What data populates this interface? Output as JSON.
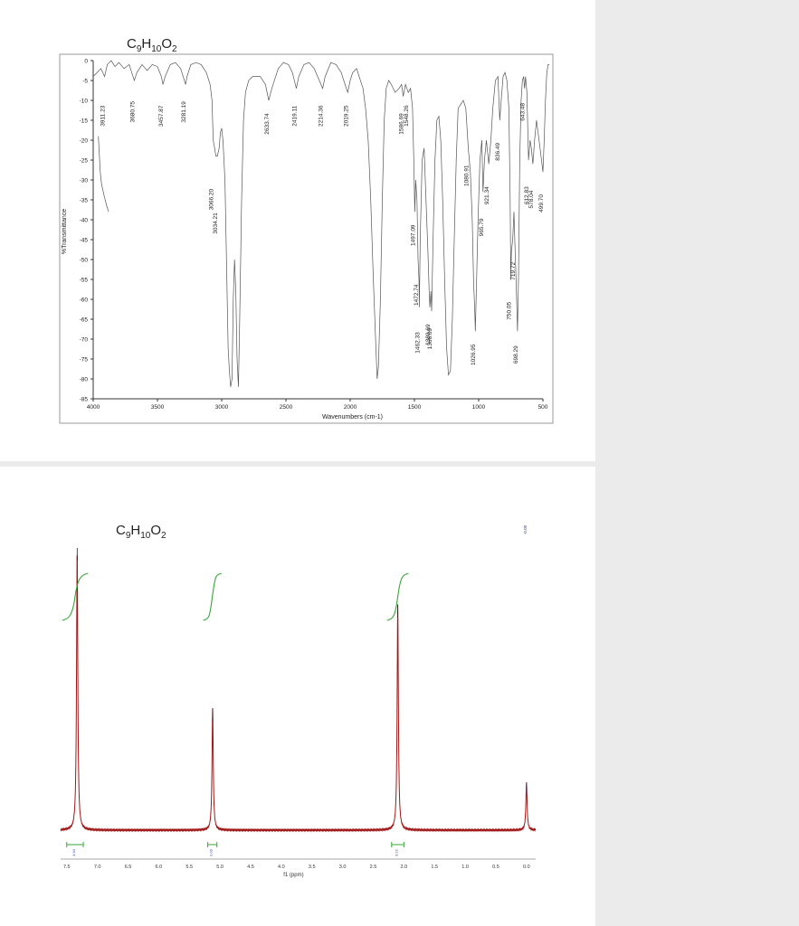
{
  "ir": {
    "formula": {
      "main": "C",
      "n1": "9",
      "mid1": "H",
      "n2": "10",
      "mid2": "O",
      "n3": "2"
    },
    "chart_data": {
      "type": "line",
      "xlabel": "Wavenumbers (cm-1)",
      "ylabel": "%Transmittance",
      "xlim": [
        4000,
        500
      ],
      "ylim": [
        -85,
        0
      ],
      "x_ticks": [
        4000,
        3500,
        3000,
        2500,
        2000,
        1500,
        1000,
        500
      ],
      "y_ticks": [
        0,
        -5,
        -10,
        -15,
        -20,
        -25,
        -30,
        -35,
        -40,
        -45,
        -50,
        -55,
        -60,
        -65,
        -70,
        -75,
        -80,
        -85
      ],
      "peak_labels": [
        {
          "x": 3911.23,
          "y": -3,
          "label": "3911.23"
        },
        {
          "x": 3680.75,
          "y": -2,
          "label": "3680.75"
        },
        {
          "x": 3457.87,
          "y": -3,
          "label": "3457.87"
        },
        {
          "x": 3281.19,
          "y": -2,
          "label": "3281.19"
        },
        {
          "x": 3066.2,
          "y": -24,
          "label": "3066.20"
        },
        {
          "x": 3034.21,
          "y": -30,
          "label": "3034.21"
        },
        {
          "x": 2633.74,
          "y": -5,
          "label": "2633.74"
        },
        {
          "x": 2419.11,
          "y": -3,
          "label": "2419.11"
        },
        {
          "x": 2214.36,
          "y": -3,
          "label": "2214.36"
        },
        {
          "x": 2019.25,
          "y": -3,
          "label": "2019.25"
        },
        {
          "x": 1586.69,
          "y": -5,
          "label": "1586.69"
        },
        {
          "x": 1548.26,
          "y": -3,
          "label": "1548.26"
        },
        {
          "x": 1497.09,
          "y": -33,
          "label": "1497.09"
        },
        {
          "x": 1472.74,
          "y": -48,
          "label": "1472.74"
        },
        {
          "x": 1462.33,
          "y": -60,
          "label": "1462.33"
        },
        {
          "x": 1380.69,
          "y": -58,
          "label": "1380.69"
        },
        {
          "x": 1366.09,
          "y": -59,
          "label": "1366.09"
        },
        {
          "x": 1080.91,
          "y": -18,
          "label": "1080.91"
        },
        {
          "x": 1026.95,
          "y": -63,
          "label": "1026.95"
        },
        {
          "x": 965.79,
          "y": -31,
          "label": "965.79"
        },
        {
          "x": 921.34,
          "y": -23,
          "label": "921.34"
        },
        {
          "x": 836.49,
          "y": -12,
          "label": "836.49"
        },
        {
          "x": 750.05,
          "y": -52,
          "label": "750.05"
        },
        {
          "x": 719.72,
          "y": -42,
          "label": "719.72"
        },
        {
          "x": 698.29,
          "y": -63,
          "label": "698.29"
        },
        {
          "x": 643.48,
          "y": -2,
          "label": "643.48"
        },
        {
          "x": 612.83,
          "y": -23,
          "label": "612.83"
        },
        {
          "x": 578.04,
          "y": -24,
          "label": "578.04"
        },
        {
          "x": 499.7,
          "y": -25,
          "label": "499.70"
        }
      ],
      "series": [
        {
          "points": [
            [
              4000,
              -4
            ],
            [
              3970,
              -3
            ],
            [
              3940,
              -2
            ],
            [
              3911,
              -4
            ],
            [
              3890,
              -1
            ],
            [
              3860,
              0
            ],
            [
              3830,
              -1.5
            ],
            [
              3800,
              -0.5
            ],
            [
              3760,
              -2
            ],
            [
              3720,
              -1
            ],
            [
              3700,
              -3
            ],
            [
              3680,
              -5
            ],
            [
              3660,
              -3
            ],
            [
              3620,
              -1
            ],
            [
              3580,
              -2.5
            ],
            [
              3540,
              -1
            ],
            [
              3500,
              -1.5
            ],
            [
              3470,
              -4
            ],
            [
              3457,
              -6
            ],
            [
              3440,
              -4
            ],
            [
              3400,
              -1
            ],
            [
              3360,
              -0.5
            ],
            [
              3320,
              -2
            ],
            [
              3290,
              -5
            ],
            [
              3281,
              -6
            ],
            [
              3270,
              -4
            ],
            [
              3240,
              -1
            ],
            [
              3200,
              -0.5
            ],
            [
              3160,
              -1
            ],
            [
              3120,
              -3
            ],
            [
              3090,
              -6
            ],
            [
              3075,
              -10
            ],
            [
              3066,
              -20
            ],
            [
              3055,
              -22
            ],
            [
              3045,
              -24
            ],
            [
              3034,
              -24
            ],
            [
              3020,
              -22
            ],
            [
              3010,
              -18
            ],
            [
              3000,
              -17
            ],
            [
              2990,
              -20
            ],
            [
              2975,
              -30
            ],
            [
              2960,
              -55
            ],
            [
              2950,
              -72
            ],
            [
              2940,
              -78
            ],
            [
              2930,
              -82
            ],
            [
              2920,
              -80
            ],
            [
              2910,
              -60
            ],
            [
              2900,
              -50
            ],
            [
              2890,
              -58
            ],
            [
              2880,
              -75
            ],
            [
              2870,
              -82
            ],
            [
              2860,
              -65
            ],
            [
              2845,
              -35
            ],
            [
              2830,
              -15
            ],
            [
              2815,
              -8
            ],
            [
              2790,
              -5
            ],
            [
              2760,
              -4
            ],
            [
              2700,
              -4
            ],
            [
              2660,
              -6
            ],
            [
              2634,
              -10
            ],
            [
              2610,
              -7
            ],
            [
              2560,
              -2
            ],
            [
              2520,
              -0.5
            ],
            [
              2480,
              -1
            ],
            [
              2450,
              -3
            ],
            [
              2419,
              -7
            ],
            [
              2400,
              -4
            ],
            [
              2360,
              -1
            ],
            [
              2320,
              -0.5
            ],
            [
              2280,
              -2
            ],
            [
              2240,
              -5
            ],
            [
              2214,
              -7
            ],
            [
              2195,
              -4
            ],
            [
              2150,
              -0.5
            ],
            [
              2110,
              -1
            ],
            [
              2070,
              -3
            ],
            [
              2040,
              -6
            ],
            [
              2019,
              -8
            ],
            [
              2000,
              -5
            ],
            [
              1980,
              -3
            ],
            [
              1950,
              -2
            ],
            [
              1930,
              -4
            ],
            [
              1900,
              -7
            ],
            [
              1880,
              -12
            ],
            [
              1860,
              -20
            ],
            [
              1840,
              -35
            ],
            [
              1820,
              -55
            ],
            [
              1800,
              -72
            ],
            [
              1790,
              -80
            ],
            [
              1780,
              -77
            ],
            [
              1765,
              -60
            ],
            [
              1750,
              -35
            ],
            [
              1735,
              -15
            ],
            [
              1720,
              -7
            ],
            [
              1700,
              -5
            ],
            [
              1680,
              -6
            ],
            [
              1650,
              -8
            ],
            [
              1620,
              -7
            ],
            [
              1600,
              -6
            ],
            [
              1587,
              -9
            ],
            [
              1570,
              -6
            ],
            [
              1548,
              -8
            ],
            [
              1530,
              -7
            ],
            [
              1515,
              -12
            ],
            [
              1505,
              -25
            ],
            [
              1497,
              -38
            ],
            [
              1490,
              -30
            ],
            [
              1480,
              -35
            ],
            [
              1472,
              -50
            ],
            [
              1465,
              -55
            ],
            [
              1462,
              -62
            ],
            [
              1455,
              -45
            ],
            [
              1440,
              -25
            ],
            [
              1425,
              -22
            ],
            [
              1410,
              -35
            ],
            [
              1395,
              -48
            ],
            [
              1385,
              -58
            ],
            [
              1380,
              -62
            ],
            [
              1372,
              -58
            ],
            [
              1366,
              -63
            ],
            [
              1355,
              -45
            ],
            [
              1340,
              -25
            ],
            [
              1325,
              -15
            ],
            [
              1310,
              -14
            ],
            [
              1295,
              -20
            ],
            [
              1280,
              -35
            ],
            [
              1265,
              -55
            ],
            [
              1250,
              -72
            ],
            [
              1235,
              -79
            ],
            [
              1220,
              -78
            ],
            [
              1205,
              -65
            ],
            [
              1190,
              -45
            ],
            [
              1175,
              -25
            ],
            [
              1160,
              -12
            ],
            [
              1140,
              -11
            ],
            [
              1120,
              -10
            ],
            [
              1100,
              -12
            ],
            [
              1081,
              -22
            ],
            [
              1065,
              -28
            ],
            [
              1050,
              -40
            ],
            [
              1040,
              -55
            ],
            [
              1030,
              -63
            ],
            [
              1026,
              -68
            ],
            [
              1018,
              -58
            ],
            [
              1005,
              -40
            ],
            [
              990,
              -25
            ],
            [
              975,
              -20
            ],
            [
              966,
              -33
            ],
            [
              955,
              -25
            ],
            [
              940,
              -20
            ],
            [
              921,
              -26
            ],
            [
              905,
              -20
            ],
            [
              890,
              -12
            ],
            [
              870,
              -5
            ],
            [
              850,
              -4
            ],
            [
              836,
              -15
            ],
            [
              825,
              -10
            ],
            [
              810,
              -4
            ],
            [
              795,
              -3
            ],
            [
              780,
              -5
            ],
            [
              765,
              -12
            ],
            [
              755,
              -35
            ],
            [
              750,
              -55
            ],
            [
              745,
              -48
            ],
            [
              735,
              -45
            ],
            [
              725,
              -38
            ],
            [
              719,
              -45
            ],
            [
              712,
              -52
            ],
            [
              705,
              -60
            ],
            [
              698,
              -68
            ],
            [
              690,
              -55
            ],
            [
              680,
              -25
            ],
            [
              670,
              -10
            ],
            [
              660,
              -5
            ],
            [
              650,
              -4
            ],
            [
              643,
              -7
            ],
            [
              635,
              -4
            ],
            [
              625,
              -8
            ],
            [
              612,
              -25
            ],
            [
              600,
              -20
            ],
            [
              590,
              -22
            ],
            [
              578,
              -26
            ],
            [
              565,
              -20
            ],
            [
              550,
              -15
            ],
            [
              530,
              -20
            ],
            [
              515,
              -24
            ],
            [
              500,
              -28
            ],
            [
              490,
              -20
            ],
            [
              480,
              -10
            ],
            [
              470,
              -3
            ],
            [
              460,
              -1
            ],
            [
              450,
              -1
            ]
          ]
        },
        {
          "points": [
            [
              3960,
              -19
            ],
            [
              3955,
              -22
            ],
            [
              3945,
              -28
            ],
            [
              3935,
              -31
            ],
            [
              3915,
              -34
            ],
            [
              3895,
              -36.5
            ],
            [
              3880,
              -38
            ]
          ]
        }
      ]
    }
  },
  "nmr": {
    "formula": {
      "main": "C",
      "n1": "9",
      "mid1": "H",
      "n2": "10",
      "mid2": "O",
      "n3": "2"
    },
    "chart_data": {
      "type": "line",
      "xlabel": "f1 (ppm)",
      "xlim": [
        7.6,
        -0.15
      ],
      "ylim": [
        0,
        1.0
      ],
      "x_ticks": [
        7.5,
        7.0,
        6.5,
        6.0,
        5.5,
        5.0,
        4.5,
        4.0,
        3.5,
        3.0,
        2.5,
        2.0,
        1.5,
        1.0,
        0.5,
        0.0
      ],
      "x_tick_labels": [
        "7.5",
        "7.0",
        "6.5",
        "6.0",
        "5.5",
        "5.0",
        "4.5",
        "4.0",
        "3.5",
        "3.0",
        "2.5",
        "2.0",
        "1.5",
        "1.0",
        "0.5",
        "0.0"
      ],
      "peaks": [
        {
          "shift": 7.33,
          "height": 1.0
        },
        {
          "shift": 5.12,
          "height": 0.43
        },
        {
          "shift": 2.1,
          "height": 0.8
        },
        {
          "shift": 0.0,
          "height": 0.17
        }
      ],
      "peak_label": {
        "shift": 0.0,
        "label": "-0.00"
      },
      "integrals": [
        {
          "from": 7.5,
          "to": 7.23,
          "value": "4.94"
        },
        {
          "from": 5.2,
          "to": 5.05,
          "value": "2.03"
        },
        {
          "from": 2.2,
          "to": 2.0,
          "value": "3.22"
        }
      ]
    }
  }
}
